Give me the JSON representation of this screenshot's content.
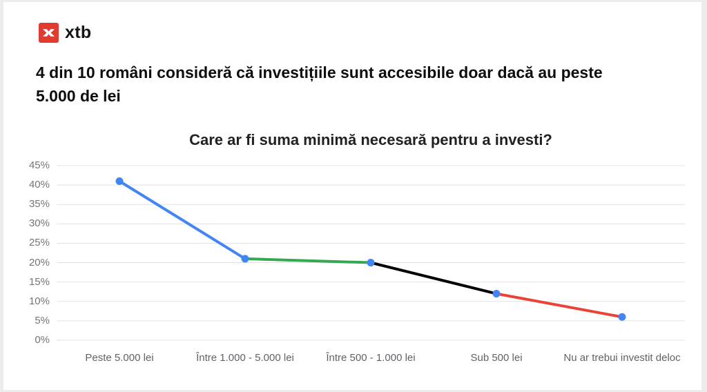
{
  "page": {
    "background_color": "#ececec",
    "card_color": "#ffffff"
  },
  "header": {
    "logo": {
      "brand": "xtb",
      "icon": "xtb-x-logo-icon",
      "icon_color": "#e13b30"
    },
    "headline": "4 din 10 români consideră că investițiile sunt accesibile doar dacă au peste 5.000 de lei"
  },
  "chart_data": {
    "type": "line",
    "title": "Care ar fi suma minimă necesară pentru a investi?",
    "categories": [
      "Peste 5.000 lei",
      "Între 1.000 - 5.000 lei",
      "Între 500 - 1.000 lei",
      "Sub 500 lei",
      "Nu ar trebui investit deloc"
    ],
    "values": [
      41,
      21,
      20,
      12,
      6
    ],
    "unit": "%",
    "xlabel": "",
    "ylabel": "",
    "ylim": [
      0,
      45
    ],
    "y_tick_step": 5,
    "y_ticks": [
      "0%",
      "5%",
      "10%",
      "15%",
      "20%",
      "25%",
      "30%",
      "35%",
      "40%",
      "45%"
    ],
    "grid": true,
    "legend": "none",
    "segment_colors": [
      "#4285f4",
      "#34a853",
      "#000000",
      "#ea4335"
    ],
    "point_color": "#4285f4",
    "grid_color": "#e2e2e2",
    "y_label_color": "#757575",
    "x_label_color": "#5f6368"
  }
}
